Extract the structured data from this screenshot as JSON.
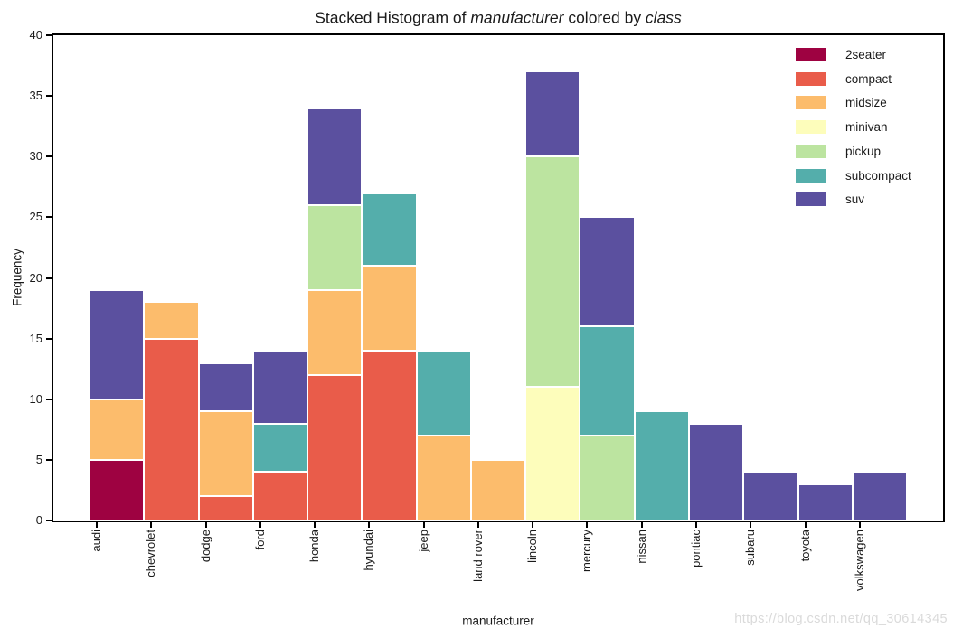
{
  "title": {
    "part1": "Stacked Histogram of ",
    "var1": "manufacturer",
    "part2": " colored by ",
    "var2": "class"
  },
  "watermark": "https://blog.csdn.net/qq_30614345",
  "chart_data": {
    "type": "bar",
    "stacked": true,
    "title": "Stacked Histogram of manufacturer colored by class",
    "xlabel": "manufacturer",
    "ylabel": "Frequency",
    "ylim": [
      0,
      40
    ],
    "yticks": [
      0,
      5,
      10,
      15,
      20,
      25,
      30,
      35,
      40
    ],
    "grid": false,
    "legend_position": "upper right",
    "categories": [
      "audi",
      "chevrolet",
      "dodge",
      "ford",
      "honda",
      "hyundai",
      "jeep",
      "land rover",
      "lincoln",
      "mercury",
      "nissan",
      "pontiac",
      "subaru",
      "toyota",
      "volkswagen"
    ],
    "series": [
      {
        "name": "2seater",
        "color": "#9e0241",
        "values": [
          5,
          0,
          0,
          0,
          0,
          0,
          0,
          0,
          0,
          0,
          0,
          0,
          0,
          0,
          0
        ]
      },
      {
        "name": "compact",
        "color": "#e95c4a",
        "values": [
          0,
          15,
          2,
          4,
          12,
          14,
          0,
          0,
          0,
          0,
          0,
          0,
          0,
          0,
          0
        ]
      },
      {
        "name": "midsize",
        "color": "#fcbc6c",
        "values": [
          5,
          3,
          7,
          0,
          7,
          7,
          7,
          5,
          0,
          0,
          0,
          0,
          0,
          0,
          0
        ]
      },
      {
        "name": "minivan",
        "color": "#fdfdbb",
        "values": [
          0,
          0,
          0,
          0,
          0,
          0,
          0,
          0,
          11,
          0,
          0,
          0,
          0,
          0,
          0
        ]
      },
      {
        "name": "pickup",
        "color": "#bce4a0",
        "values": [
          0,
          0,
          0,
          0,
          7,
          0,
          0,
          0,
          19,
          7,
          0,
          0,
          0,
          0,
          0
        ]
      },
      {
        "name": "subcompact",
        "color": "#54aeab",
        "values": [
          0,
          0,
          0,
          4,
          0,
          6,
          7,
          0,
          0,
          9,
          9,
          0,
          0,
          0,
          0
        ]
      },
      {
        "name": "suv",
        "color": "#5b509f",
        "values": [
          9,
          0,
          4,
          6,
          8,
          0,
          0,
          0,
          7,
          9,
          0,
          8,
          4,
          3,
          4
        ]
      }
    ],
    "totals": [
      19,
      18,
      13,
      14,
      34,
      27,
      14,
      5,
      37,
      25,
      9,
      8,
      4,
      3,
      4
    ]
  }
}
